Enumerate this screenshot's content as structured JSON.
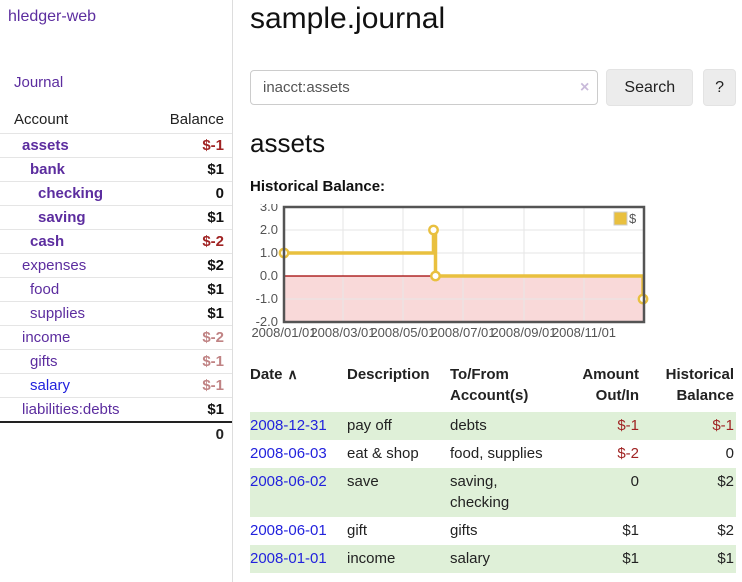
{
  "app": {
    "title": "hledger-web"
  },
  "sidebar": {
    "journal_link": "Journal",
    "accounts": {
      "account_header": "Account",
      "balance_header": "Balance",
      "rows": [
        {
          "name": "assets",
          "depth": 1,
          "bold": true,
          "name_color": "purple",
          "balance": "$-1",
          "balance_color": "neg"
        },
        {
          "name": "bank",
          "depth": 2,
          "bold": true,
          "name_color": "purple",
          "balance": "$1",
          "balance_color": "pos"
        },
        {
          "name": "checking",
          "depth": 3,
          "bold": true,
          "name_color": "purple",
          "balance": "0",
          "balance_color": "pos"
        },
        {
          "name": "saving",
          "depth": 3,
          "bold": true,
          "name_color": "purple",
          "balance": "$1",
          "balance_color": "pos"
        },
        {
          "name": "cash",
          "depth": 2,
          "bold": true,
          "name_color": "purple",
          "balance": "$-2",
          "balance_color": "neg"
        },
        {
          "name": "expenses",
          "depth": 1,
          "bold": false,
          "name_color": "purple",
          "balance": "$2",
          "balance_color": "pos"
        },
        {
          "name": "food",
          "depth": 2,
          "bold": false,
          "name_color": "purple",
          "balance": "$1",
          "balance_color": "pos"
        },
        {
          "name": "supplies",
          "depth": 2,
          "bold": false,
          "name_color": "purple",
          "balance": "$1",
          "balance_color": "pos"
        },
        {
          "name": "income",
          "depth": 1,
          "bold": false,
          "name_color": "purple",
          "balance": "$-2",
          "balance_color": "neg-muted"
        },
        {
          "name": "gifts",
          "depth": 2,
          "bold": false,
          "name_color": "purple",
          "balance": "$-1",
          "balance_color": "neg-muted"
        },
        {
          "name": "salary",
          "depth": 2,
          "bold": false,
          "name_color": "blue",
          "balance": "$-1",
          "balance_color": "neg-muted"
        },
        {
          "name": "liabilities:debts",
          "depth": 1,
          "bold": false,
          "name_color": "purple",
          "balance": "$1",
          "balance_color": "pos"
        }
      ],
      "total": "0"
    }
  },
  "header": {
    "title": "sample.journal"
  },
  "search": {
    "value": "inacct:assets",
    "clear_icon": "×",
    "button_label": "Search",
    "help_label": "?"
  },
  "account_page": {
    "title": "assets",
    "chart_caption": "Historical Balance:"
  },
  "chart_data": {
    "type": "line",
    "title": "Historical Balance",
    "step": true,
    "series": [
      {
        "name": "$",
        "color": "#e9c03f",
        "points": [
          [
            "2008-01-01",
            1.0
          ],
          [
            "2008-06-01",
            2.0
          ],
          [
            "2008-06-03",
            0.0
          ],
          [
            "2008-12-31",
            -1.0
          ]
        ]
      }
    ],
    "xrange": [
      "2008-01-01",
      "2009-01-01"
    ],
    "ylim": [
      -2.0,
      3.0
    ],
    "x_ticks": [
      {
        "label": "2008/01/01",
        "date": "2008-01-01"
      },
      {
        "label": "2008/03/01",
        "date": "2008-03-01"
      },
      {
        "label": "2008/05/01",
        "date": "2008-05-01"
      },
      {
        "label": "2008/07/01",
        "date": "2008-07-01"
      },
      {
        "label": "2008/09/01",
        "date": "2008-09-01"
      },
      {
        "label": "2008/11/01",
        "date": "2008-11-01"
      }
    ],
    "y_ticks": [
      {
        "label": "3.0",
        "value": 3
      },
      {
        "label": "2.0",
        "value": 2
      },
      {
        "label": "1.0",
        "value": 1
      },
      {
        "label": "0.0",
        "value": 0
      },
      {
        "label": "-1.0",
        "value": -1
      },
      {
        "label": "-2.0",
        "value": -2
      }
    ],
    "grid": true,
    "negative_region_fill": "#f9d9d9",
    "zero_line_color": "#a00000",
    "legend": {
      "label": "$",
      "position": "top-right"
    }
  },
  "register_table": {
    "headers": {
      "date": "Date",
      "sort_asc_icon": "∧",
      "description": "Description",
      "accounts": "To/From Account(s)",
      "amount": "Amount Out/In",
      "balance": "Historical Balance"
    },
    "rows": [
      {
        "date": "2008-12-31",
        "description": "pay off",
        "accounts": "debts",
        "amount": "$-1",
        "amount_negative": true,
        "balance": "$-1",
        "balance_negative": true,
        "stripe": true
      },
      {
        "date": "2008-06-03",
        "description": "eat & shop",
        "accounts": "food, supplies",
        "amount": "$-2",
        "amount_negative": true,
        "balance": "0",
        "balance_negative": false,
        "stripe": false
      },
      {
        "date": "2008-06-02",
        "description": "save",
        "accounts": "saving, checking",
        "amount": "0",
        "amount_negative": false,
        "balance": "$2",
        "balance_negative": false,
        "stripe": true
      },
      {
        "date": "2008-06-01",
        "description": "gift",
        "accounts": "gifts",
        "amount": "$1",
        "amount_negative": false,
        "balance": "$2",
        "balance_negative": false,
        "stripe": false
      },
      {
        "date": "2008-01-01",
        "description": "income",
        "accounts": "salary",
        "amount": "$1",
        "amount_negative": false,
        "balance": "$1",
        "balance_negative": false,
        "stripe": true
      }
    ]
  }
}
